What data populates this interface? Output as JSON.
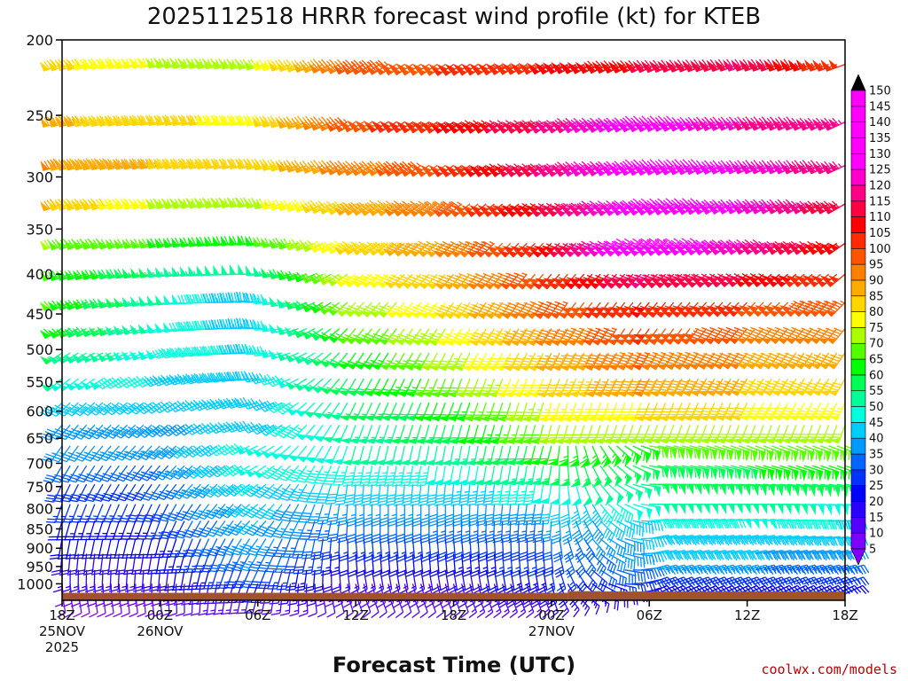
{
  "chart_data": {
    "type": "wind-barb-profile",
    "title": "2025112518 HRRR forecast wind profile (kt) for KTEB",
    "xlabel": "Forecast Time (UTC)",
    "ylabel": "",
    "credit": "coolwx.com/models",
    "y_scale": "log",
    "y_axis_inverted": true,
    "ylim": [
      1050,
      200
    ],
    "y_ticks": [
      {
        "value": 200,
        "label": "200"
      },
      {
        "value": 250,
        "label": "250"
      },
      {
        "value": 300,
        "label": "300"
      },
      {
        "value": 350,
        "label": "350"
      },
      {
        "value": 400,
        "label": "400"
      },
      {
        "value": 450,
        "label": "450"
      },
      {
        "value": 500,
        "label": "500"
      },
      {
        "value": 550,
        "label": "550"
      },
      {
        "value": 600,
        "label": "600"
      },
      {
        "value": 650,
        "label": "650"
      },
      {
        "value": 700,
        "label": "700"
      },
      {
        "value": 750,
        "label": "750"
      },
      {
        "value": 800,
        "label": "800"
      },
      {
        "value": 850,
        "label": "850"
      },
      {
        "value": 900,
        "label": "900"
      },
      {
        "value": 950,
        "label": "950"
      },
      {
        "value": 1000,
        "label": "1000"
      }
    ],
    "xlim": [
      0,
      48
    ],
    "x_ticks": [
      {
        "hour": 0,
        "lines": [
          "18Z",
          "25NOV",
          "2025"
        ]
      },
      {
        "hour": 6,
        "lines": [
          "00Z",
          "26NOV"
        ]
      },
      {
        "hour": 12,
        "lines": [
          "06Z"
        ]
      },
      {
        "hour": 18,
        "lines": [
          "12Z"
        ]
      },
      {
        "hour": 24,
        "lines": [
          "18Z"
        ]
      },
      {
        "hour": 30,
        "lines": [
          "00Z",
          "27NOV"
        ]
      },
      {
        "hour": 36,
        "lines": [
          "06Z"
        ]
      },
      {
        "hour": 42,
        "lines": [
          "12Z"
        ]
      },
      {
        "hour": 48,
        "lines": [
          "18Z"
        ]
      }
    ],
    "levels_hpa": [
      215,
      255,
      290,
      325,
      365,
      400,
      435,
      470,
      505,
      545,
      585,
      625,
      665,
      705,
      745,
      790,
      830,
      875,
      915,
      960,
      1000,
      1030
    ],
    "hours_per_barb": 0.5,
    "speed_keyframes_kt": {
      "hours": [
        0,
        6,
        12,
        18,
        24,
        30,
        36,
        42,
        48
      ],
      "rows": [
        [
          82,
          75,
          72,
          96,
          100,
          105,
          110,
          115,
          100
        ],
        [
          86,
          82,
          78,
          98,
          105,
          115,
          130,
          120,
          115
        ],
        [
          90,
          85,
          80,
          92,
          100,
          115,
          130,
          125,
          115
        ],
        [
          85,
          75,
          72,
          85,
          95,
          110,
          130,
          125,
          110
        ],
        [
          70,
          65,
          62,
          80,
          90,
          105,
          135,
          120,
          105
        ],
        [
          65,
          55,
          50,
          75,
          85,
          100,
          115,
          110,
          100
        ],
        [
          65,
          52,
          40,
          70,
          80,
          95,
          105,
          100,
          95
        ],
        [
          62,
          50,
          42,
          65,
          75,
          90,
          100,
          95,
          90
        ],
        [
          55,
          48,
          44,
          60,
          72,
          85,
          95,
          90,
          85
        ],
        [
          50,
          45,
          42,
          58,
          68,
          80,
          90,
          85,
          80
        ],
        [
          42,
          40,
          40,
          55,
          62,
          75,
          80,
          80,
          75
        ],
        [
          38,
          38,
          42,
          52,
          58,
          70,
          72,
          72,
          70
        ],
        [
          35,
          36,
          48,
          50,
          52,
          62,
          65,
          66,
          65
        ],
        [
          30,
          33,
          48,
          45,
          48,
          55,
          58,
          60,
          60
        ],
        [
          28,
          30,
          45,
          40,
          42,
          48,
          55,
          56,
          55
        ],
        [
          25,
          28,
          42,
          35,
          38,
          40,
          50,
          52,
          48
        ],
        [
          22,
          25,
          40,
          30,
          33,
          35,
          45,
          48,
          44
        ],
        [
          20,
          22,
          38,
          25,
          28,
          30,
          42,
          44,
          42
        ],
        [
          18,
          20,
          35,
          20,
          22,
          28,
          40,
          40,
          38
        ],
        [
          15,
          18,
          30,
          15,
          18,
          25,
          35,
          35,
          33
        ],
        [
          10,
          12,
          20,
          12,
          15,
          20,
          28,
          28,
          25
        ],
        [
          8,
          10,
          15,
          10,
          12,
          15,
          20,
          22,
          20
        ]
      ]
    },
    "direction_keyframes_deg": {
      "hours": [
        0,
        6,
        12,
        18,
        24,
        30,
        36,
        42,
        48
      ],
      "rows": [
        [
          250,
          260,
          255,
          240,
          235,
          240,
          245,
          250,
          250
        ],
        [
          255,
          260,
          260,
          240,
          235,
          235,
          240,
          245,
          245
        ],
        [
          255,
          260,
          260,
          240,
          235,
          235,
          240,
          245,
          245
        ],
        [
          250,
          255,
          260,
          235,
          230,
          230,
          235,
          240,
          240
        ],
        [
          250,
          255,
          265,
          235,
          225,
          225,
          230,
          235,
          235
        ],
        [
          250,
          260,
          270,
          230,
          220,
          220,
          225,
          230,
          230
        ],
        [
          245,
          260,
          275,
          225,
          215,
          215,
          220,
          225,
          225
        ],
        [
          240,
          255,
          275,
          220,
          210,
          210,
          215,
          220,
          220
        ],
        [
          235,
          250,
          270,
          215,
          205,
          205,
          210,
          215,
          215
        ],
        [
          230,
          245,
          265,
          210,
          200,
          200,
          205,
          210,
          210
        ],
        [
          225,
          235,
          255,
          205,
          200,
          195,
          200,
          205,
          205
        ],
        [
          220,
          230,
          250,
          200,
          195,
          195,
          200,
          200,
          200
        ],
        [
          215,
          225,
          245,
          195,
          190,
          195,
          100,
          110,
          110
        ],
        [
          210,
          220,
          240,
          190,
          190,
          190,
          100,
          105,
          110
        ],
        [
          205,
          215,
          235,
          185,
          185,
          190,
          90,
          95,
          100
        ],
        [
          200,
          205,
          230,
          180,
          180,
          190,
          90,
          90,
          95
        ],
        [
          195,
          200,
          225,
          180,
          180,
          185,
          85,
          85,
          90
        ],
        [
          190,
          195,
          215,
          175,
          175,
          180,
          80,
          80,
          85
        ],
        [
          185,
          190,
          210,
          175,
          175,
          175,
          80,
          80,
          80
        ],
        [
          180,
          185,
          205,
          170,
          170,
          170,
          75,
          75,
          75
        ],
        [
          175,
          180,
          200,
          165,
          165,
          165,
          70,
          70,
          70
        ],
        [
          170,
          175,
          195,
          160,
          160,
          160,
          65,
          65,
          65
        ]
      ]
    },
    "terrain": [
      {
        "from_hour": 0,
        "to_hour": 31,
        "top_hpa": 1027
      },
      {
        "from_hour": 31,
        "to_hour": 33,
        "top_hpa": 1022
      },
      {
        "from_hour": 33,
        "to_hour": 48,
        "top_hpa": 1023
      }
    ],
    "colorbar": {
      "min_kt": 5,
      "max_kt": 150,
      "step_kt": 5,
      "labels": [
        "150",
        "145",
        "140",
        "135",
        "130",
        "125",
        "120",
        "115",
        "110",
        "105",
        "100",
        "95",
        "90",
        "85",
        "80",
        "75",
        "70",
        "65",
        "60",
        "55",
        "50",
        "45",
        "40",
        "35",
        "30",
        "25",
        "20",
        "15",
        "10",
        "5"
      ],
      "colors": [
        "#7f00ff",
        "#5500ff",
        "#2a00ff",
        "#0000ff",
        "#0033ff",
        "#0066ff",
        "#0099ff",
        "#00ccff",
        "#00ffdd",
        "#00ff99",
        "#00ff55",
        "#00ff00",
        "#55ff00",
        "#aaff00",
        "#ffff00",
        "#ffd500",
        "#ffaa00",
        "#ff8000",
        "#ff5500",
        "#ff2a00",
        "#ff0000",
        "#ff0044",
        "#ff0088",
        "#ff00cc",
        "#ff00ff",
        "#ff00ff",
        "#ff00ff",
        "#ff00ff",
        "#ff00ff"
      ]
    },
    "colors": {
      "terrain": "#a0522d",
      "axis": "#000000"
    }
  }
}
